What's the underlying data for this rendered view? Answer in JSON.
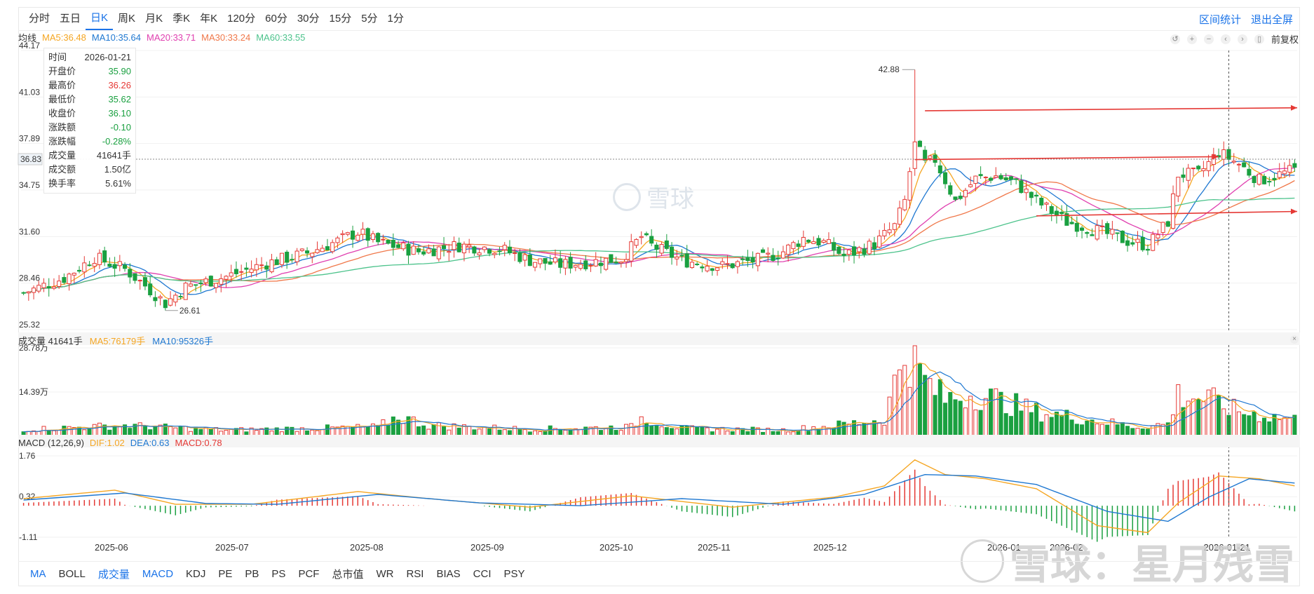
{
  "period_tabs": [
    "分时",
    "五日",
    "日K",
    "周K",
    "月K",
    "季K",
    "年K",
    "120分",
    "60分",
    "30分",
    "15分",
    "5分",
    "1分"
  ],
  "active_period": 2,
  "top_actions": {
    "range_stats": "区间统计",
    "exit_fullscreen": "退出全屏"
  },
  "ma_legend": {
    "label": "均线",
    "items": [
      {
        "text": "MA5:36.48",
        "color": "#f5a623"
      },
      {
        "text": "MA10:35.64",
        "color": "#1f78d1"
      },
      {
        "text": "MA20:33.71",
        "color": "#e040b0"
      },
      {
        "text": "MA30:33.24",
        "color": "#f0784a"
      },
      {
        "text": "MA60:33.55",
        "color": "#4dc38c"
      }
    ]
  },
  "tools": {
    "icons": [
      "undo-icon",
      "zoom-in-icon",
      "zoom-out-icon",
      "left-icon",
      "right-icon",
      "lock-icon"
    ],
    "adjust_label": "前复权"
  },
  "info_box": [
    {
      "k": "时间",
      "v": "2026-01-21",
      "c": "#333333"
    },
    {
      "k": "开盘价",
      "v": "35.90",
      "c": "#1aa040"
    },
    {
      "k": "最高价",
      "v": "36.26",
      "c": "#e53935"
    },
    {
      "k": "最低价",
      "v": "35.62",
      "c": "#1aa040"
    },
    {
      "k": "收盘价",
      "v": "36.10",
      "c": "#1aa040"
    },
    {
      "k": "涨跌额",
      "v": "-0.10",
      "c": "#1aa040"
    },
    {
      "k": "涨跌幅",
      "v": "-0.28%",
      "c": "#1aa040"
    },
    {
      "k": "成交量",
      "v": "41641手",
      "c": "#333333"
    },
    {
      "k": "成交额",
      "v": "1.50亿",
      "c": "#333333"
    },
    {
      "k": "换手率",
      "v": "5.61%",
      "c": "#333333"
    }
  ],
  "volume_legend": {
    "label": "成交量 41641手",
    "ma5": "MA5:76179手",
    "ma10": "MA10:95326手"
  },
  "macd_legend": {
    "label": "MACD (12,26,9)",
    "dif": "DIF:1.02",
    "dea": "DEA:0.63",
    "macd": "MACD:0.78"
  },
  "bottom_tabs": [
    "MA",
    "BOLL",
    "成交量",
    "MACD",
    "KDJ",
    "PE",
    "PB",
    "PS",
    "PCF",
    "总市值",
    "WR",
    "RSI",
    "BIAS",
    "CCI",
    "PSY"
  ],
  "bottom_tabs_active": [
    0,
    2,
    3
  ],
  "watermark_center": "雪球",
  "watermark_br": "雪球：星月残雪",
  "chart_data": {
    "type": "candlestick",
    "price_axis": {
      "ylim": [
        25.32,
        44.17
      ],
      "ticks": [
        "44.17",
        "41.03",
        "37.89",
        "34.75",
        "31.60",
        "28.46",
        "25.32"
      ],
      "current": "36.83"
    },
    "max_label": "42.88",
    "min_label": "26.61",
    "x_ticks": [
      "2025-06",
      "2025-07",
      "2025-08",
      "2025-09",
      "2025-10",
      "2025-11",
      "2025-12",
      "2026-01",
      "2026-02"
    ],
    "cursor_date_label": "2026-01-21",
    "volume_axis": {
      "ticks": [
        "28.78万",
        "14.39万"
      ],
      "max": 28.78
    },
    "macd_axis": {
      "ticks": [
        "1.76",
        "0.32",
        "-1.11"
      ],
      "ylim": [
        -1.11,
        1.76
      ]
    },
    "price_anchors": [
      [
        0,
        27.8
      ],
      [
        8,
        28.8
      ],
      [
        14,
        30.2
      ],
      [
        20,
        29.4
      ],
      [
        24,
        28.3
      ],
      [
        28,
        27.1
      ],
      [
        32,
        28.2
      ],
      [
        40,
        28.9
      ],
      [
        48,
        29.8
      ],
      [
        56,
        30.5
      ],
      [
        62,
        31.3
      ],
      [
        66,
        31.9
      ],
      [
        70,
        31.2
      ],
      [
        78,
        30.6
      ],
      [
        86,
        31.0
      ],
      [
        94,
        30.8
      ],
      [
        100,
        30.0
      ],
      [
        106,
        29.7
      ],
      [
        112,
        29.9
      ],
      [
        118,
        30.1
      ],
      [
        122,
        31.6
      ],
      [
        124,
        31.0
      ],
      [
        130,
        30.0
      ],
      [
        138,
        29.6
      ],
      [
        146,
        30.1
      ],
      [
        150,
        30.6
      ],
      [
        154,
        31.5
      ],
      [
        158,
        31.2
      ],
      [
        162,
        30.3
      ],
      [
        168,
        31.1
      ],
      [
        172,
        32.3
      ],
      [
        174,
        34.0
      ],
      [
        176,
        38.0
      ],
      [
        178,
        36.5
      ],
      [
        180,
        36.8
      ],
      [
        184,
        34.0
      ],
      [
        188,
        35.5
      ],
      [
        192,
        35.7
      ],
      [
        196,
        35.2
      ],
      [
        200,
        34.0
      ],
      [
        206,
        32.6
      ],
      [
        212,
        32.0
      ],
      [
        218,
        31.3
      ],
      [
        222,
        31.0
      ],
      [
        226,
        32.6
      ],
      [
        228,
        35.8
      ],
      [
        232,
        35.8
      ],
      [
        236,
        37.3
      ],
      [
        240,
        36.5
      ],
      [
        244,
        35.4
      ],
      [
        248,
        35.8
      ],
      [
        251,
        36.1
      ]
    ],
    "volume_anchors": [
      [
        0,
        2.2
      ],
      [
        20,
        3.5
      ],
      [
        40,
        2.0
      ],
      [
        70,
        3.0
      ],
      [
        74,
        6.5
      ],
      [
        80,
        3.5
      ],
      [
        100,
        2.3
      ],
      [
        120,
        3.0
      ],
      [
        122,
        6.0
      ],
      [
        130,
        2.5
      ],
      [
        150,
        2.0
      ],
      [
        160,
        3.5
      ],
      [
        170,
        5.5
      ],
      [
        174,
        28.5
      ],
      [
        178,
        18.0
      ],
      [
        182,
        12.0
      ],
      [
        188,
        14.0
      ],
      [
        194,
        11.0
      ],
      [
        200,
        8.0
      ],
      [
        210,
        5.5
      ],
      [
        220,
        3.0
      ],
      [
        226,
        4.0
      ],
      [
        228,
        13.5
      ],
      [
        234,
        12.0
      ],
      [
        240,
        8.0
      ],
      [
        246,
        6.5
      ],
      [
        251,
        5.5
      ]
    ],
    "macd_dif_anchors": [
      [
        0,
        0.25
      ],
      [
        18,
        0.55
      ],
      [
        30,
        0.05
      ],
      [
        45,
        0.05
      ],
      [
        66,
        0.5
      ],
      [
        80,
        0.25
      ],
      [
        100,
        -0.05
      ],
      [
        120,
        0.35
      ],
      [
        140,
        -0.05
      ],
      [
        160,
        0.3
      ],
      [
        170,
        0.7
      ],
      [
        176,
        1.62
      ],
      [
        182,
        1.1
      ],
      [
        190,
        0.95
      ],
      [
        200,
        0.6
      ],
      [
        212,
        -0.7
      ],
      [
        222,
        -0.95
      ],
      [
        228,
        0.1
      ],
      [
        236,
        1.05
      ],
      [
        244,
        0.95
      ],
      [
        251,
        0.7
      ]
    ],
    "macd_dea_anchors": [
      [
        0,
        0.2
      ],
      [
        20,
        0.45
      ],
      [
        36,
        0.08
      ],
      [
        50,
        0.05
      ],
      [
        70,
        0.4
      ],
      [
        90,
        0.1
      ],
      [
        110,
        0.0
      ],
      [
        130,
        0.25
      ],
      [
        150,
        0.05
      ],
      [
        166,
        0.4
      ],
      [
        178,
        1.1
      ],
      [
        188,
        1.05
      ],
      [
        200,
        0.75
      ],
      [
        214,
        -0.2
      ],
      [
        226,
        -0.55
      ],
      [
        234,
        0.3
      ],
      [
        242,
        0.95
      ],
      [
        251,
        0.8
      ]
    ],
    "trend_lines": [
      {
        "from": [
          178,
          40.1
        ],
        "to": [
          252,
          40.3
        ]
      },
      {
        "from": [
          176,
          36.8
        ],
        "to": [
          236,
          37.0
        ]
      },
      {
        "from": [
          200,
          33.0
        ],
        "to": [
          252,
          33.3
        ]
      }
    ],
    "series": [
      {
        "name": "MA5",
        "color": "#f5a623"
      },
      {
        "name": "MA10",
        "color": "#1f78d1"
      },
      {
        "name": "MA20",
        "color": "#e040b0"
      },
      {
        "name": "MA30",
        "color": "#f0784a"
      },
      {
        "name": "MA60",
        "color": "#4dc38c"
      }
    ]
  }
}
